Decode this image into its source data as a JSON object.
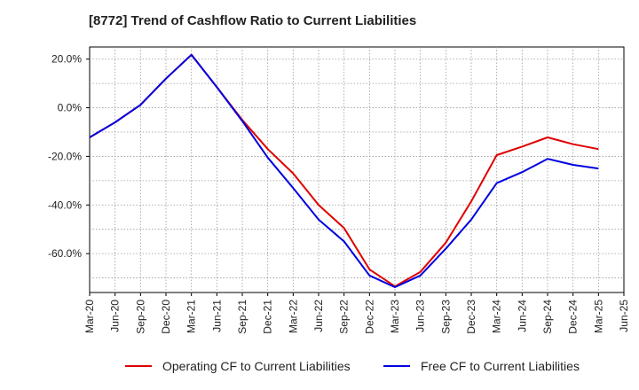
{
  "chart_data": {
    "type": "line",
    "title": "[8772]  Trend of Cashflow Ratio to Current Liabilities",
    "xlabel": "",
    "ylabel": "",
    "x_tick_labels": [
      "Mar-20",
      "Jun-20",
      "Sep-20",
      "Dec-20",
      "Mar-21",
      "Jun-21",
      "Sep-21",
      "Dec-21",
      "Mar-22",
      "Jun-22",
      "Sep-22",
      "Dec-22",
      "Mar-23",
      "Jun-23",
      "Sep-23",
      "Dec-23",
      "Mar-24",
      "Jun-24",
      "Sep-24",
      "Dec-24",
      "Mar-25",
      "Jun-25"
    ],
    "y_ticks": [
      20,
      0,
      -20,
      -40,
      -60
    ],
    "y_tick_labels": [
      "20.0%",
      "0.0%",
      "-20.0%",
      "-40.0%",
      "-60.0%"
    ],
    "ylim": [
      -76,
      25
    ],
    "grid": true,
    "legend_position": "bottom",
    "x": [
      "Mar-20",
      "Jun-20",
      "Sep-20",
      "Dec-20",
      "Mar-21",
      "Jun-21",
      "Sep-21",
      "Dec-21",
      "Mar-22",
      "Jun-22",
      "Sep-22",
      "Dec-22",
      "Mar-23",
      "Jun-23",
      "Sep-23",
      "Dec-23",
      "Mar-24",
      "Jun-24",
      "Sep-24",
      "Dec-24",
      "Mar-25"
    ],
    "series": [
      {
        "name": "Operating CF to Current Liabilities",
        "color": "#e00000",
        "values": [
          -12.2,
          -6.0,
          1.2,
          12.0,
          21.8,
          8.5,
          -5.0,
          -17.0,
          -27.0,
          -40.0,
          -49.5,
          -66.5,
          -73.5,
          -67.5,
          -55.5,
          -38.5,
          -19.5,
          -16.0,
          -12.2,
          -15.0,
          -17.0
        ]
      },
      {
        "name": "Free CF to Current Liabilities",
        "color": "#0000e0",
        "values": [
          -12.2,
          -6.0,
          1.2,
          12.0,
          21.8,
          8.5,
          -5.5,
          -20.5,
          -33.0,
          -46.0,
          -55.0,
          -69.0,
          -73.8,
          -69.0,
          -58.0,
          -46.0,
          -31.0,
          -26.5,
          -21.0,
          -23.5,
          -25.0
        ]
      }
    ]
  }
}
